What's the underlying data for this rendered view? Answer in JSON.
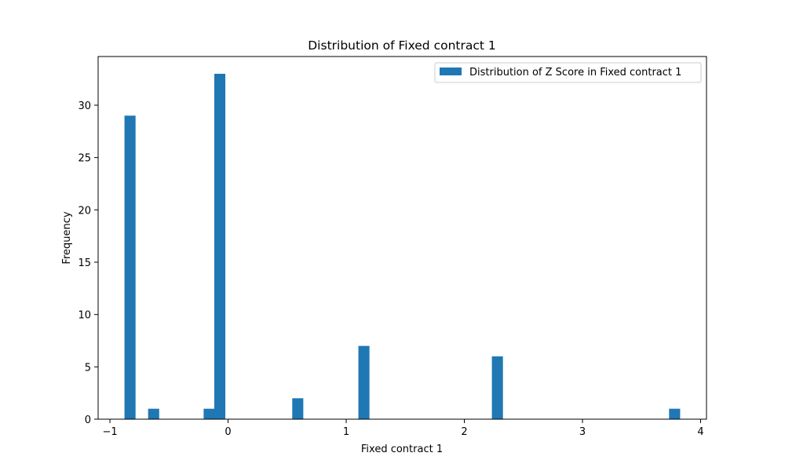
{
  "chart_data": {
    "type": "bar",
    "title": "Distribution of Fixed contract 1",
    "xlabel": "Fixed contract 1",
    "ylabel": "Frequency",
    "xlim": [
      -1.1,
      4.05
    ],
    "ylim": [
      0,
      34.65
    ],
    "xticks": [
      -1,
      0,
      1,
      2,
      3,
      4
    ],
    "yticks": [
      0,
      5,
      10,
      15,
      20,
      25,
      30
    ],
    "bar_width": 0.0937,
    "bars": [
      {
        "x": -0.83,
        "value": 29
      },
      {
        "x": -0.63,
        "value": 1
      },
      {
        "x": -0.16,
        "value": 1
      },
      {
        "x": -0.07,
        "value": 33
      },
      {
        "x": 0.59,
        "value": 2
      },
      {
        "x": 1.15,
        "value": 7
      },
      {
        "x": 2.28,
        "value": 6
      },
      {
        "x": 3.78,
        "value": 1
      }
    ],
    "legend": {
      "label": "Distribution of Z Score in Fixed contract 1",
      "position": "upper right"
    },
    "colors": {
      "bar": "#1f77b4"
    },
    "grid": false
  }
}
